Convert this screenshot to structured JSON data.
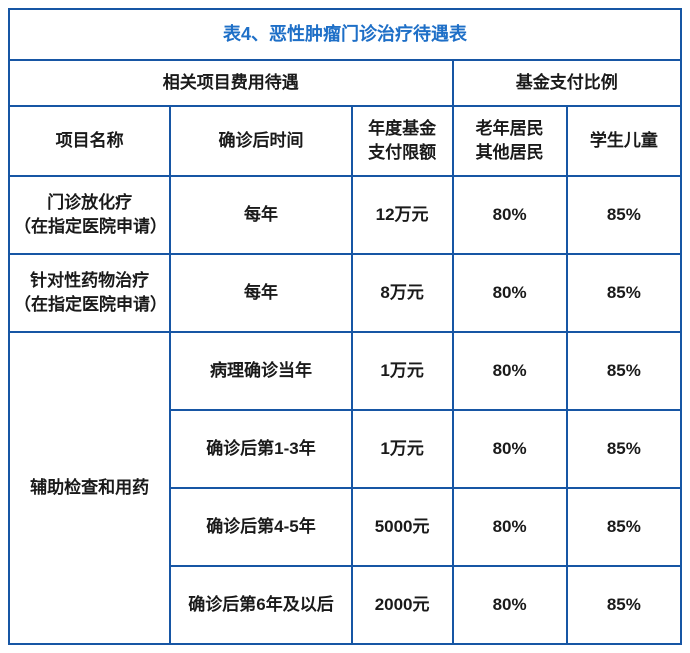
{
  "table": {
    "type": "table",
    "title": "表4、恶性肿瘤门诊治疗待遇表",
    "title_color": "#1e6fc7",
    "border_color": "#1756a4",
    "text_color": "#1a1a1a",
    "background_color": "#ffffff",
    "font_size": 17,
    "title_font_size": 18,
    "header_group_left": "相关项目费用待遇",
    "header_group_right": "基金支付比例",
    "headers": {
      "project": "项目名称",
      "time": "确诊后时间",
      "limit_line1": "年度基金",
      "limit_line2": "支付限额",
      "elder_line1": "老年居民",
      "elder_line2": "其他居民",
      "student": "学生儿童"
    },
    "rows": [
      {
        "project_line1": "门诊放化疗",
        "project_line2": "（在指定医院申请）",
        "time": "每年",
        "limit": "12万元",
        "elder": "80%",
        "student": "85%"
      },
      {
        "project_line1": "针对性药物治疗",
        "project_line2": "（在指定医院申请）",
        "time": "每年",
        "limit": "8万元",
        "elder": "80%",
        "student": "85%"
      }
    ],
    "merged_project": "辅助检查和用药",
    "merged_rows": [
      {
        "time": "病理确诊当年",
        "limit": "1万元",
        "elder": "80%",
        "student": "85%"
      },
      {
        "time": "确诊后第1-3年",
        "limit": "1万元",
        "elder": "80%",
        "student": "85%"
      },
      {
        "time": "确诊后第4-5年",
        "limit": "5000元",
        "elder": "80%",
        "student": "85%"
      },
      {
        "time": "确诊后第6年及以后",
        "limit": "2000元",
        "elder": "80%",
        "student": "85%"
      }
    ]
  }
}
